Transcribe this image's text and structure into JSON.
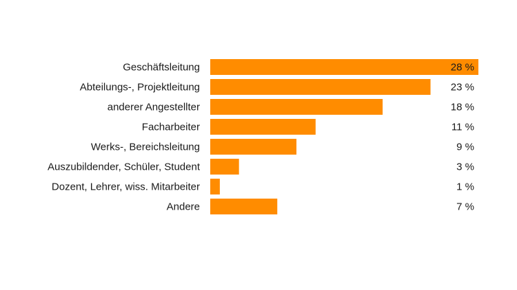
{
  "chart_data": {
    "type": "bar",
    "orientation": "horizontal",
    "title": "",
    "xlabel": "",
    "ylabel": "",
    "categories": [
      "Geschäftsleitung",
      "Abteilungs-, Projektleitung",
      "anderer Angestellter",
      "Facharbeiter",
      "Werks-, Bereichsleitung",
      "Auszubildender, Schüler, Student",
      "Dozent, Lehrer, wiss. Mitarbeiter",
      "Andere"
    ],
    "values": [
      28,
      23,
      18,
      11,
      9,
      3,
      1,
      7
    ],
    "value_labels": [
      "28 %",
      "23 %",
      "18 %",
      "11 %",
      "9 %",
      "3 %",
      "1 %",
      "7 %"
    ],
    "xlim": [
      0,
      28
    ],
    "grid": false,
    "bar_color": "#ff8c00"
  }
}
